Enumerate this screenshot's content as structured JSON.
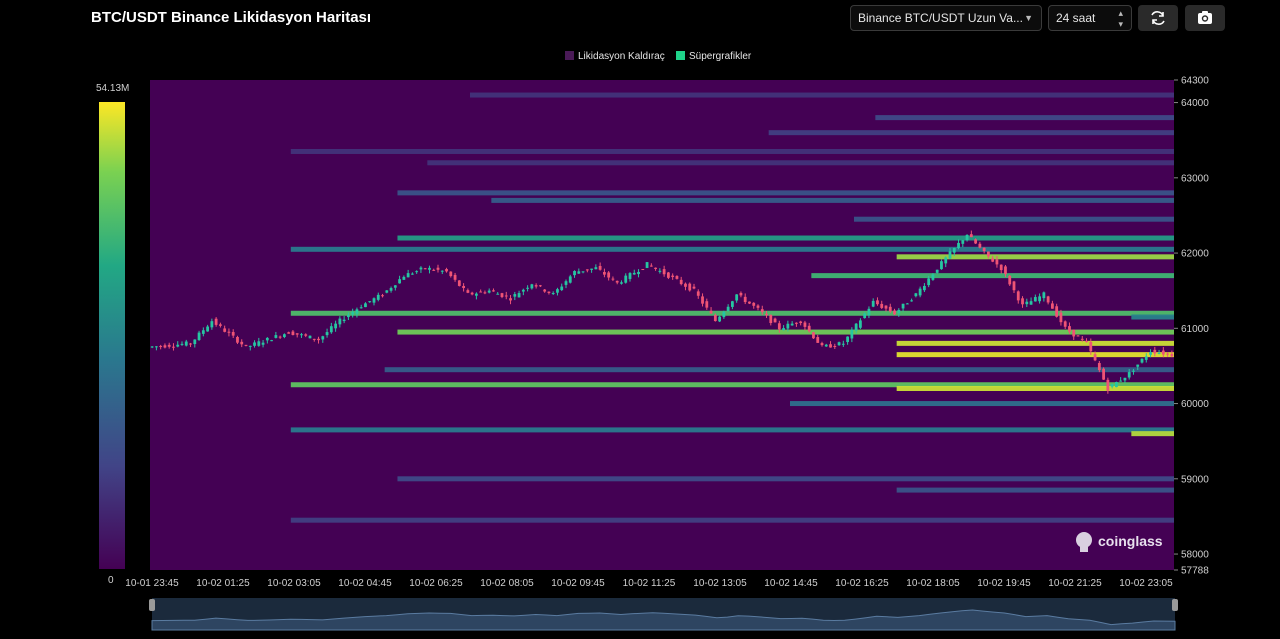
{
  "header": {
    "title": "BTC/USDT Binance Likidasyon Haritası",
    "exchange_select": "Binance BTC/USDT Uzun Va...",
    "range_select": "24 saat",
    "refresh_icon": "refresh-icon",
    "camera_icon": "camera-icon"
  },
  "colors": {
    "background": "#440154",
    "candle_up": "#26c6a2",
    "candle_down": "#ef5475",
    "legend_leverage": "#4a1a57",
    "legend_super": "#1fd38a"
  },
  "chart_data": {
    "type": "heatmap",
    "legend": [
      {
        "name": "Likidasyon Kaldıraç"
      },
      {
        "name": "Süpergrafikler"
      }
    ],
    "colorbar": {
      "max_label": "54.13M",
      "min_label": "0",
      "max": 54.13,
      "min": 0,
      "colormap": "viridis"
    },
    "y_ticks": [
      "64300",
      "64000",
      "63000",
      "62000",
      "61000",
      "60000",
      "59000",
      "58000",
      "57788"
    ],
    "y_tick_values": [
      64300,
      64000,
      63000,
      62000,
      61000,
      60000,
      59000,
      58000,
      57788
    ],
    "ylim": [
      57788,
      64300
    ],
    "x_ticks": [
      "10-01 23:45",
      "10-02 01:25",
      "10-02 03:05",
      "10-02 04:45",
      "10-02 06:25",
      "10-02 08:05",
      "10-02 09:45",
      "10-02 11:25",
      "10-02 13:05",
      "10-02 14:45",
      "10-02 16:25",
      "10-02 18:05",
      "10-02 19:45",
      "10-02 21:25",
      "10-02 23:05"
    ],
    "x_range_hours": [
      0,
      24
    ],
    "price_path": [
      [
        0.0,
        60750
      ],
      [
        1.0,
        60800
      ],
      [
        1.5,
        61100
      ],
      [
        2.3,
        60750
      ],
      [
        3.3,
        60950
      ],
      [
        4.0,
        60850
      ],
      [
        4.5,
        61100
      ],
      [
        5.0,
        61300
      ],
      [
        5.5,
        61450
      ],
      [
        6.0,
        61700
      ],
      [
        6.5,
        61800
      ],
      [
        7.0,
        61750
      ],
      [
        7.5,
        61450
      ],
      [
        8.0,
        61500
      ],
      [
        8.5,
        61400
      ],
      [
        9.0,
        61600
      ],
      [
        9.5,
        61450
      ],
      [
        10.0,
        61750
      ],
      [
        10.5,
        61800
      ],
      [
        11.0,
        61600
      ],
      [
        11.7,
        61850
      ],
      [
        12.2,
        61700
      ],
      [
        12.8,
        61500
      ],
      [
        13.3,
        61100
      ],
      [
        13.8,
        61450
      ],
      [
        14.3,
        61250
      ],
      [
        14.8,
        61000
      ],
      [
        15.3,
        61100
      ],
      [
        15.8,
        60750
      ],
      [
        16.3,
        60800
      ],
      [
        17.0,
        61350
      ],
      [
        17.5,
        61200
      ],
      [
        18.0,
        61450
      ],
      [
        18.5,
        61800
      ],
      [
        19.2,
        62250
      ],
      [
        19.6,
        62000
      ],
      [
        20.0,
        61800
      ],
      [
        20.5,
        61300
      ],
      [
        21.0,
        61450
      ],
      [
        21.5,
        61000
      ],
      [
        22.0,
        60800
      ],
      [
        22.5,
        60200
      ],
      [
        23.0,
        60400
      ],
      [
        23.5,
        60700
      ],
      [
        24.0,
        60650
      ]
    ],
    "liquidation_bands": [
      {
        "price": 64100,
        "start_hour": 7.5,
        "value": 8
      },
      {
        "price": 63800,
        "start_hour": 17,
        "value": 12
      },
      {
        "price": 63600,
        "start_hour": 14.5,
        "value": 10
      },
      {
        "price": 63350,
        "start_hour": 3.3,
        "value": 8
      },
      {
        "price": 63200,
        "start_hour": 6.5,
        "value": 8
      },
      {
        "price": 62800,
        "start_hour": 5.8,
        "value": 14
      },
      {
        "price": 62700,
        "start_hour": 8,
        "value": 16
      },
      {
        "price": 62450,
        "start_hour": 16.5,
        "value": 14
      },
      {
        "price": 62200,
        "start_hour": 5.8,
        "value": 30
      },
      {
        "price": 62050,
        "start_hour": 3.3,
        "value": 22
      },
      {
        "price": 61950,
        "start_hour": 17.5,
        "value": 46
      },
      {
        "price": 61700,
        "start_hour": 15.5,
        "value": 36
      },
      {
        "price": 61200,
        "start_hour": 3.3,
        "value": 38
      },
      {
        "price": 61150,
        "start_hour": 23.0,
        "value": 24
      },
      {
        "price": 60950,
        "start_hour": 5.8,
        "value": 42
      },
      {
        "price": 60800,
        "start_hour": 17.5,
        "value": 50
      },
      {
        "price": 60650,
        "start_hour": 17.5,
        "value": 52
      },
      {
        "price": 60450,
        "start_hour": 5.5,
        "value": 16
      },
      {
        "price": 60250,
        "start_hour": 3.3,
        "value": 40
      },
      {
        "price": 60200,
        "start_hour": 17.5,
        "value": 50
      },
      {
        "price": 60000,
        "start_hour": 15,
        "value": 20
      },
      {
        "price": 59650,
        "start_hour": 3.3,
        "value": 22
      },
      {
        "price": 59600,
        "start_hour": 23.0,
        "value": 48
      },
      {
        "price": 59000,
        "start_hour": 5.8,
        "value": 12
      },
      {
        "price": 58850,
        "start_hour": 17.5,
        "value": 14
      },
      {
        "price": 58450,
        "start_hour": 3.3,
        "value": 10
      }
    ]
  },
  "watermark": "coinglass"
}
